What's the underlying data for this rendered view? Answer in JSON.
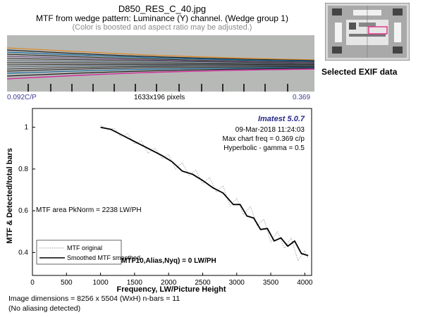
{
  "header": {
    "title": "D850_RES_C_40.jpg",
    "subtitle": "MTF from wedge pattern:  Luminance (Y) channel.  (Wedge group 1)",
    "note": "(Color is boosted and aspect ratio may be adjusted.)"
  },
  "wedge": {
    "left_label": "0.092C/P",
    "mid_label": "1633x196 pixels",
    "right_label": "0.369"
  },
  "side": {
    "exif_label": "Selected EXIF data"
  },
  "colors": {
    "accent": "#2a2a8a",
    "line": "#000000",
    "original": "#9a9a9a"
  },
  "chart_data": {
    "type": "line",
    "xlabel": "Frequency, LW/Picture Height",
    "ylabel": "MTF & Detected/total bars",
    "xlim": [
      0,
      4100
    ],
    "ylim": [
      0.29,
      1.09
    ],
    "xticks": [
      0,
      500,
      1000,
      1500,
      2000,
      2500,
      3000,
      3500,
      4000
    ],
    "yticks": [
      0.4,
      0.6,
      0.8,
      1.0
    ],
    "ytick_labels": [
      "0.4",
      "0.6",
      "0.8",
      "1"
    ],
    "annotations": {
      "version": "Imatest 5.0.7",
      "timestamp": "09-Mar-2018 11:24:03",
      "max_freq": "Max chart freq = 0.369 c/p",
      "gamma": "Hyperbolic -  gamma = 0.5",
      "mtf_area": "MTF area PkNorm = 2238 LW/PH",
      "mtf10": "MTF10,Alias,Nyq) = 0 LW/PH"
    },
    "legend": [
      "MTF original",
      "Smoothed MTF smoothed"
    ],
    "series": [
      {
        "name": "Smoothed MTF smoothed",
        "x": [
          1000,
          1150,
          1300,
          1450,
          1600,
          1750,
          1900,
          2050,
          2200,
          2350,
          2500,
          2650,
          2800,
          2950,
          3050,
          3150,
          3250,
          3350,
          3450,
          3550,
          3650,
          3750,
          3850,
          3950,
          4050
        ],
        "y": [
          1.0,
          0.99,
          0.965,
          0.94,
          0.915,
          0.89,
          0.865,
          0.835,
          0.79,
          0.775,
          0.745,
          0.71,
          0.685,
          0.63,
          0.63,
          0.575,
          0.565,
          0.51,
          0.515,
          0.455,
          0.47,
          0.43,
          0.455,
          0.395,
          0.385
        ]
      },
      {
        "name": "MTF original",
        "x": [
          1000,
          1100,
          1200,
          1300,
          1400,
          1500,
          1600,
          1700,
          1800,
          1900,
          2000,
          2100,
          2200,
          2300,
          2400,
          2500,
          2600,
          2700,
          2800,
          2900,
          3000,
          3100,
          3200,
          3300,
          3400,
          3500,
          3600,
          3700,
          3800,
          3900,
          4000,
          4050
        ],
        "y": [
          1.01,
          0.99,
          0.995,
          0.955,
          0.97,
          0.92,
          0.935,
          0.875,
          0.9,
          0.85,
          0.87,
          0.8,
          0.83,
          0.77,
          0.795,
          0.73,
          0.76,
          0.69,
          0.72,
          0.62,
          0.66,
          0.58,
          0.62,
          0.53,
          0.56,
          0.45,
          0.5,
          0.42,
          0.47,
          0.36,
          0.41,
          0.37
        ]
      }
    ]
  }
}
